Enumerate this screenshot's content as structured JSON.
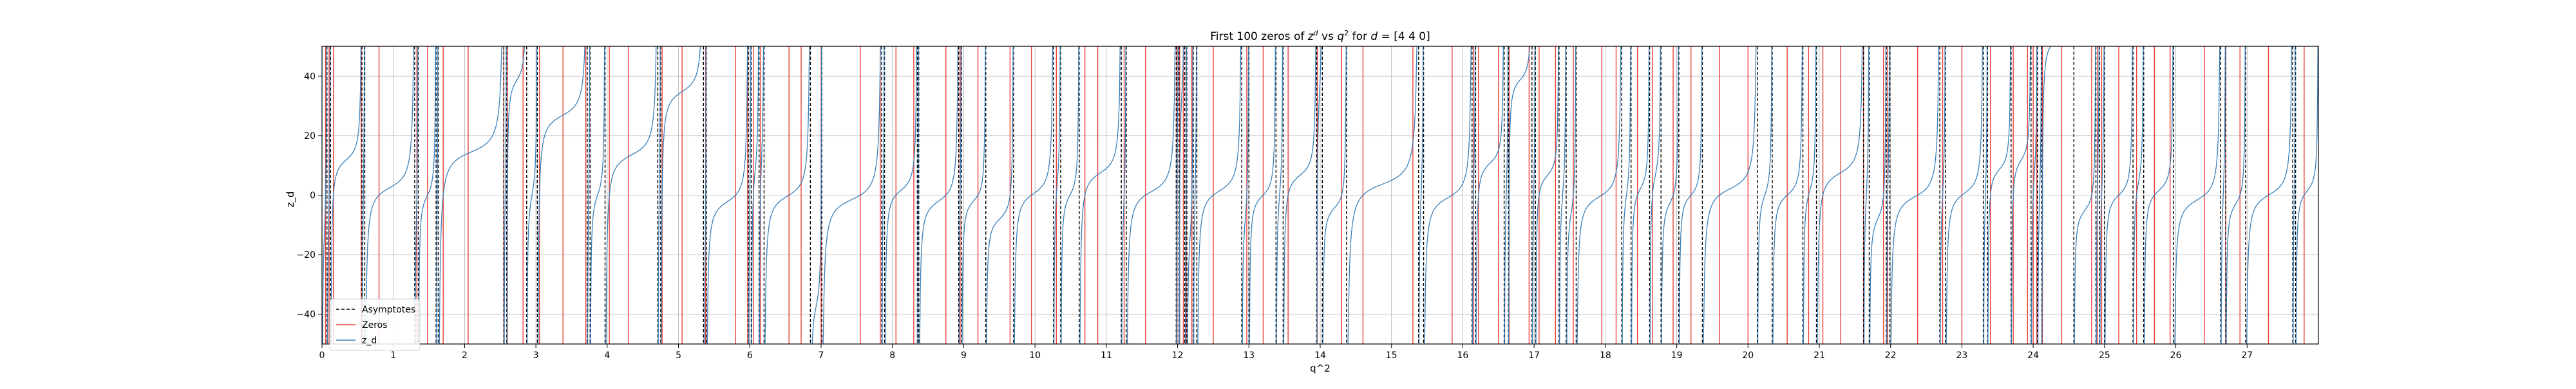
{
  "chart_data": {
    "type": "line",
    "title_parts": {
      "prefix": "First 100 zeros of ",
      "z_base": "z",
      "z_sup": "d",
      "vs": " vs ",
      "q_base": "q",
      "q_sup": "2",
      "suffix": " for ",
      "d_var": "d",
      "d_value": " = [4 4 0]"
    },
    "xlabel": "q^2",
    "ylabel": "z_d",
    "xlim": [
      0,
      28
    ],
    "ylim": [
      -50,
      50
    ],
    "xticks": [
      0,
      1,
      2,
      3,
      4,
      5,
      6,
      7,
      8,
      9,
      10,
      11,
      12,
      13,
      14,
      15,
      16,
      17,
      18,
      19,
      20,
      21,
      22,
      23,
      24,
      25,
      26,
      27
    ],
    "yticks": [
      -40,
      -20,
      0,
      20,
      40
    ],
    "grid": true,
    "legend": {
      "placement": "lower-left",
      "entries": [
        {
          "label": "Asymptotes",
          "style": "dashed",
          "color": "#000000"
        },
        {
          "label": "Zeros",
          "style": "solid",
          "color": "#e8423a"
        },
        {
          "label": "z_d",
          "style": "solid",
          "color": "#3a7fb8"
        }
      ]
    },
    "asymptotes": [
      0.07,
      0.12,
      0.56,
      0.6,
      1.3,
      1.35,
      1.6,
      1.63,
      2.55,
      2.59,
      2.87,
      3.02,
      3.72,
      3.76,
      3.97,
      4.71,
      4.75,
      5.35,
      5.39,
      5.98,
      6.02,
      6.13,
      6.2,
      6.85,
      7.01,
      7.85,
      7.89,
      8.35,
      8.37,
      8.93,
      8.97,
      9.31,
      9.7,
      10.26,
      10.36,
      10.62,
      11.21,
      11.28,
      11.98,
      12.02,
      12.1,
      12.13,
      12.22,
      12.27,
      12.9,
      13.0,
      13.38,
      13.48,
      13.95,
      14.03,
      14.37,
      15.38,
      15.45,
      16.13,
      16.18,
      16.58,
      16.64,
      16.97,
      17.02,
      17.35,
      17.45,
      17.59,
      18.23,
      18.36,
      18.62,
      18.78,
      19.03,
      19.36,
      20.13,
      20.34,
      20.77,
      20.96,
      21.62,
      21.7,
      21.94,
      21.99,
      22.69,
      22.77,
      23.3,
      23.36,
      23.69,
      23.97,
      24.06,
      24.12,
      24.57,
      24.88,
      24.93,
      25.0,
      25.4,
      25.55,
      25.97,
      26.63,
      26.7,
      26.98,
      27.64,
      27.68
    ],
    "zeros": [
      0.05,
      0.1,
      0.16,
      0.55,
      0.8,
      1.33,
      1.48,
      1.7,
      2.05,
      2.55,
      2.6,
      2.82,
      3.05,
      3.38,
      3.7,
      4.03,
      4.3,
      4.77,
      5.05,
      5.38,
      5.8,
      5.97,
      6.05,
      6.15,
      6.55,
      6.72,
      7.0,
      7.55,
      7.83,
      8.05,
      8.3,
      8.75,
      8.95,
      9.2,
      9.65,
      9.95,
      10.3,
      10.7,
      10.88,
      11.25,
      11.55,
      11.99,
      12.03,
      12.08,
      12.12,
      12.2,
      12.5,
      12.97,
      13.2,
      13.55,
      13.96,
      14.3,
      14.6,
      15.3,
      15.85,
      16.15,
      16.22,
      16.5,
      16.65,
      16.93,
      17.07,
      17.3,
      17.55,
      17.95,
      18.15,
      18.45,
      18.66,
      18.95,
      19.2,
      19.6,
      20.0,
      20.55,
      20.85,
      21.05,
      21.3,
      21.62,
      21.9,
      21.96,
      22.38,
      22.73,
      23.0,
      23.4,
      23.72,
      23.92,
      24.0,
      24.05,
      24.13,
      24.4,
      24.82,
      24.9,
      24.96,
      25.2,
      25.45,
      25.7,
      25.92,
      26.4,
      26.7,
      26.9,
      27.3,
      27.8
    ],
    "series_color": "#3a7fb8",
    "zero_color": "#e8423a",
    "asymptote_color": "#000000",
    "grid_color": "#b0b0b0"
  }
}
